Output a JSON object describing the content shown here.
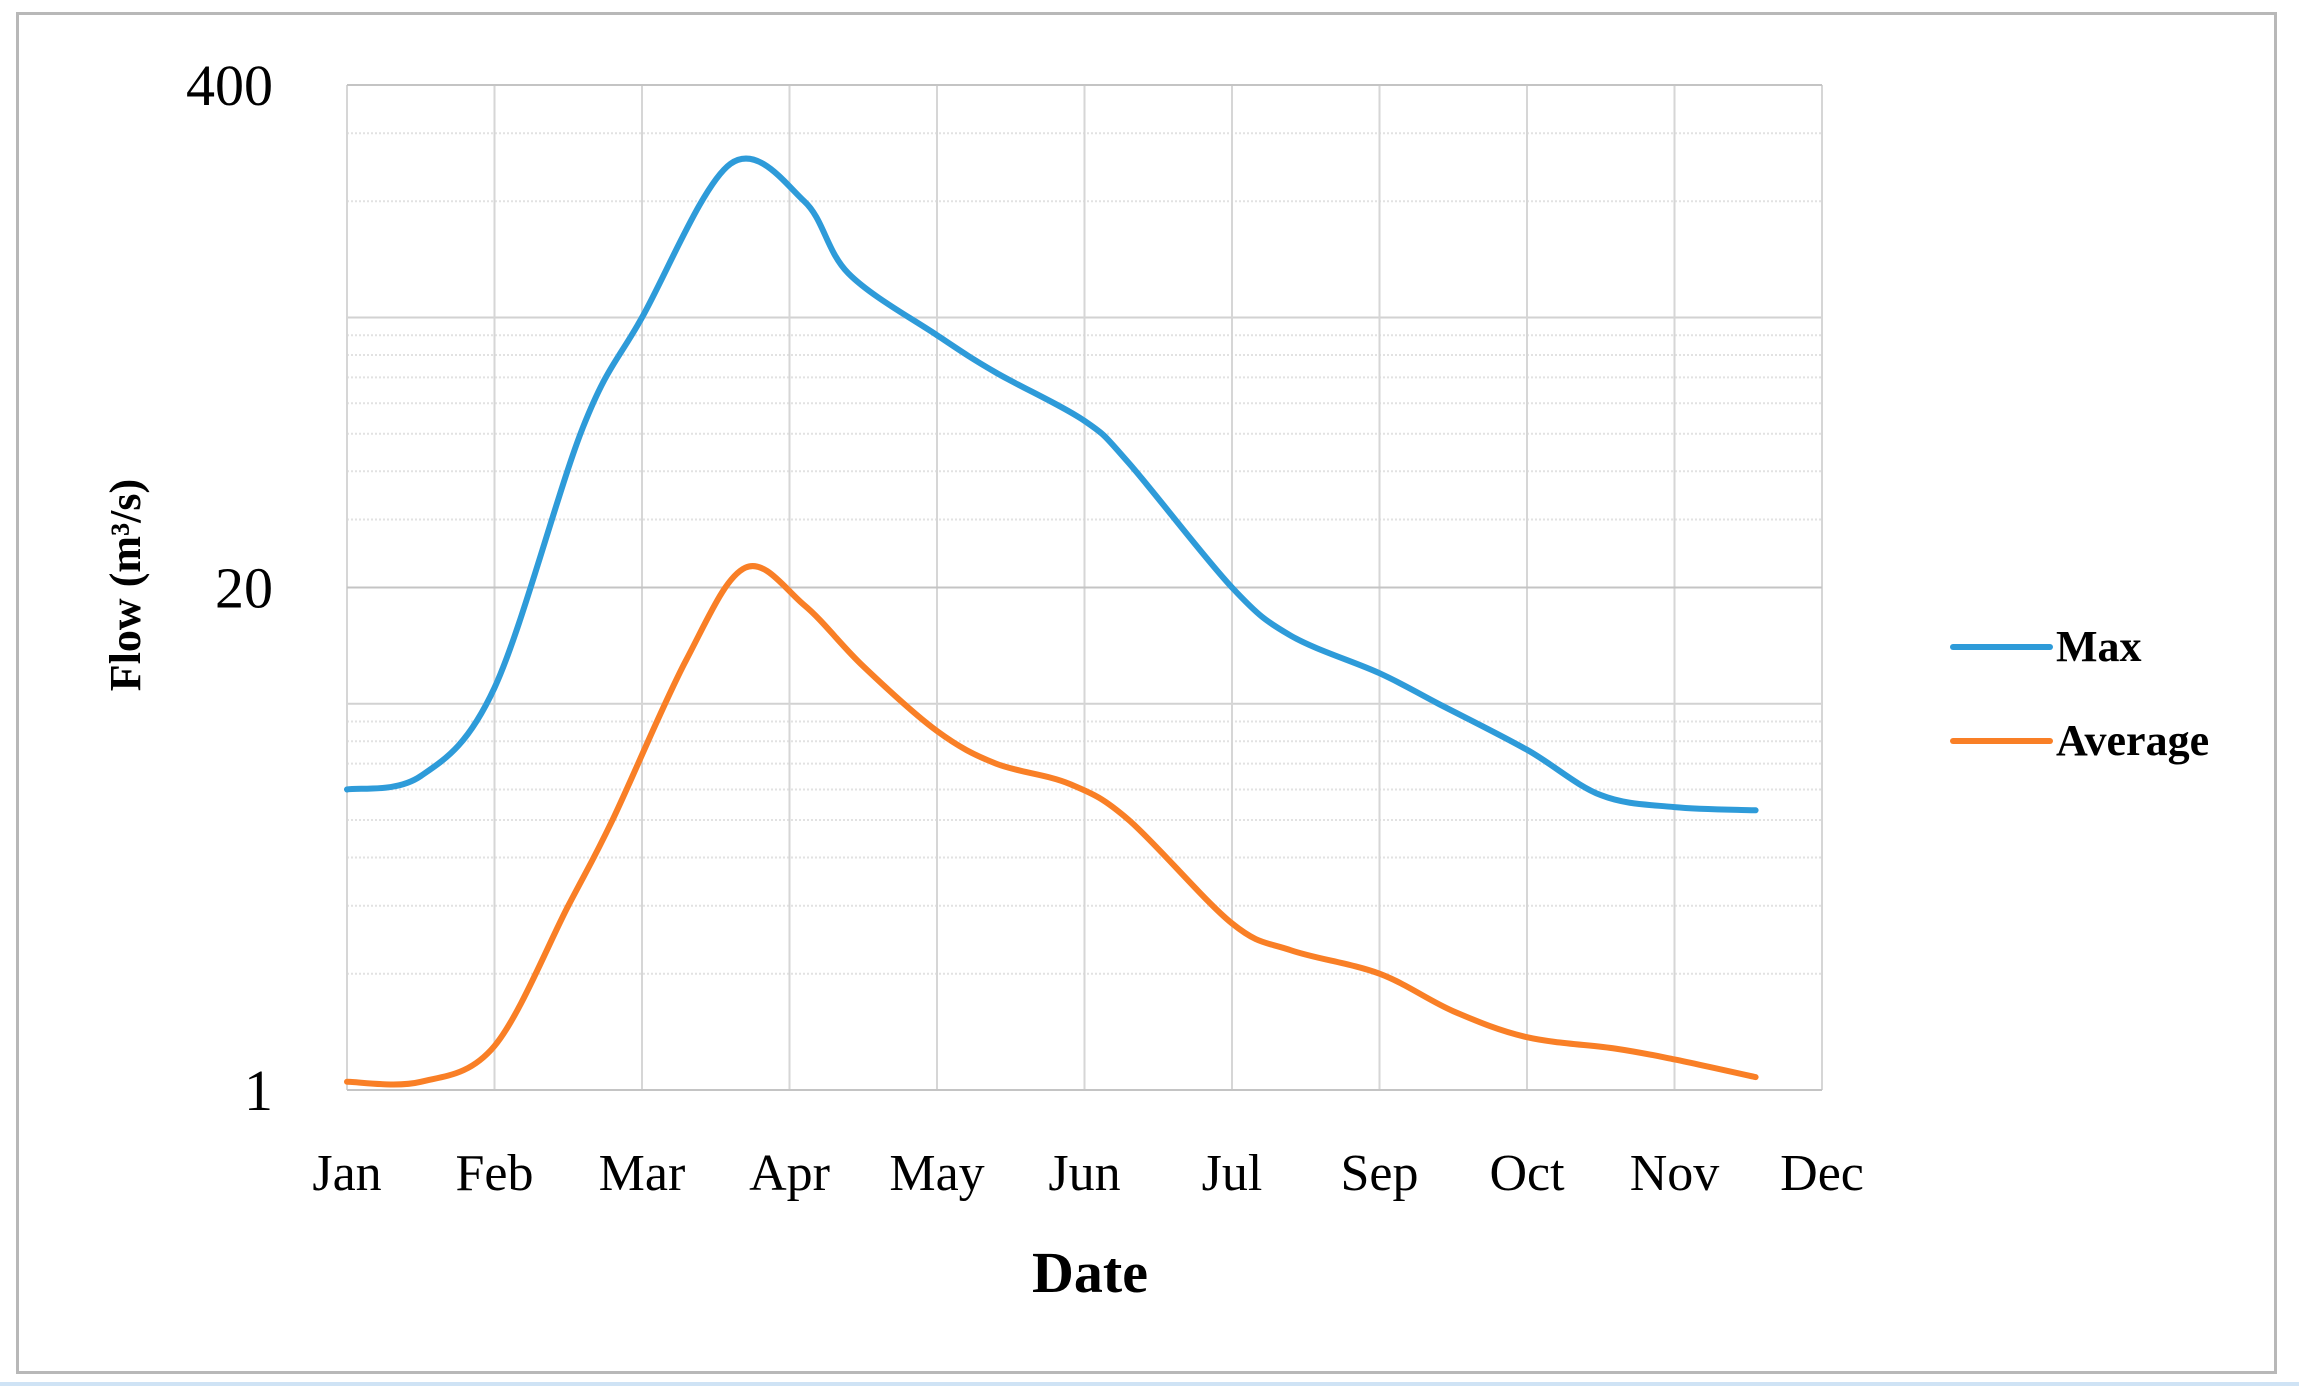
{
  "chart_data": {
    "type": "line",
    "xlabel": "Date",
    "ylabel": "Flow (m³/s)",
    "yscale": "log",
    "ylim": [
      1,
      400
    ],
    "yticks": [
      "400",
      "20",
      "1"
    ],
    "ytick_values": [
      400,
      20,
      1
    ],
    "categories": [
      "Jan",
      "Feb",
      "Mar",
      "Apr",
      "May",
      "Jun",
      "Jul",
      "Sep",
      "Oct",
      "Nov",
      "Dec"
    ],
    "legend_position": "right",
    "grid": true,
    "series": [
      {
        "name": "Max",
        "color": "#2e9bd9",
        "x": [
          0,
          0.5,
          1.0,
          1.6,
          2.0,
          2.6,
          3.1,
          3.4,
          4.0,
          4.4,
          5.0,
          5.3,
          6.0,
          6.4,
          7.0,
          7.4,
          8.0,
          8.5,
          9.0,
          9.55
        ],
        "y": [
          6.0,
          6.5,
          11.0,
          52.0,
          100.0,
          250.0,
          200.0,
          130.0,
          90.0,
          72.0,
          54.0,
          42.0,
          20.0,
          15.0,
          12.0,
          10.0,
          7.6,
          5.8,
          5.4,
          5.3
        ]
      },
      {
        "name": "Average",
        "color": "#f97f26",
        "x": [
          0,
          0.5,
          1.0,
          1.5,
          1.8,
          2.3,
          2.7,
          3.1,
          3.5,
          4.0,
          4.4,
          4.9,
          5.3,
          6.0,
          6.4,
          7.0,
          7.5,
          8.0,
          8.6,
          9.0,
          9.55
        ],
        "y": [
          1.05,
          1.05,
          1.3,
          3.0,
          5.0,
          13.0,
          22.5,
          18.0,
          12.5,
          8.5,
          7.0,
          6.2,
          5.0,
          2.7,
          2.3,
          2.0,
          1.6,
          1.37,
          1.28,
          1.2,
          1.08
        ]
      }
    ]
  }
}
